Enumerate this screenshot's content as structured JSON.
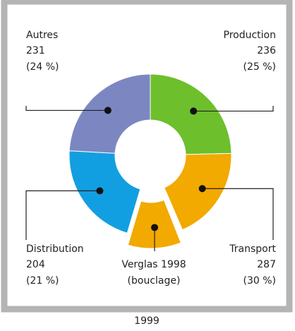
{
  "chart_data": {
    "type": "donut",
    "categories": [
      "Production",
      "Transport",
      "Distribution",
      "Autres"
    ],
    "values": [
      236,
      287,
      204,
      231
    ],
    "percents": [
      25,
      30,
      21,
      24
    ],
    "percent_labels": [
      "(25 %)",
      "(30 %)",
      "(21 %)",
      "(24 %)"
    ],
    "colors": [
      "#6dbf2c",
      "#f2a900",
      "#129fe1",
      "#7c87c1"
    ],
    "exploded": {
      "parent": 1,
      "value": 106,
      "label": [
        "Verglas 1998",
        "(bouclage)"
      ]
    },
    "caption": "1999"
  }
}
